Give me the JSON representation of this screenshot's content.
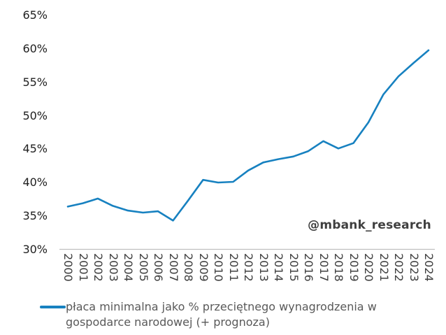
{
  "watermark": "@mbank_research",
  "legend": {
    "lines": [
      "płaca minimalna jako % przeciętnego wynagrodzenia w",
      "gospodarce narodowej (+ prognoza)"
    ]
  },
  "colors": {
    "line": "#1781c0",
    "axis_line": "#bfbfbf",
    "y_tick_text": "#202020",
    "x_tick_text": "#3f3f3f",
    "legend_text": "#595959",
    "watermark_text": "#3f3f3f",
    "background": "#ffffff"
  },
  "chart_data": {
    "type": "line",
    "title": "",
    "xlabel": "",
    "ylabel": "",
    "grid": false,
    "legend_position": "bottom-left",
    "ylim": [
      30,
      65
    ],
    "yticks": [
      {
        "value": 65,
        "label": "65%"
      },
      {
        "value": 60,
        "label": "60%"
      },
      {
        "value": 55,
        "label": "55%"
      },
      {
        "value": 50,
        "label": "50%"
      },
      {
        "value": 45,
        "label": "45%"
      },
      {
        "value": 40,
        "label": "40%"
      },
      {
        "value": 35,
        "label": "35%"
      },
      {
        "value": 30,
        "label": "30%"
      }
    ],
    "categories": [
      "2000",
      "2001",
      "2002",
      "2003",
      "2004",
      "2005",
      "2006",
      "2007",
      "2008",
      "2009",
      "2010",
      "2011",
      "2012",
      "2013",
      "2014",
      "2015",
      "2016",
      "2017",
      "2018",
      "2019",
      "2020",
      "2021",
      "2022",
      "2023",
      "2024"
    ],
    "series": [
      {
        "name": "płaca minimalna jako % przeciętnego wynagrodzenia w gospodarce narodowej (+ prognoza)",
        "color": "#1781c0",
        "values": [
          36.4,
          36.9,
          37.6,
          36.5,
          35.8,
          35.5,
          35.7,
          34.3,
          37.3,
          40.4,
          40.0,
          40.1,
          41.8,
          43.0,
          43.5,
          43.9,
          44.7,
          46.2,
          45.1,
          45.9,
          49.0,
          53.2,
          55.9,
          57.9,
          59.8
        ]
      }
    ]
  }
}
